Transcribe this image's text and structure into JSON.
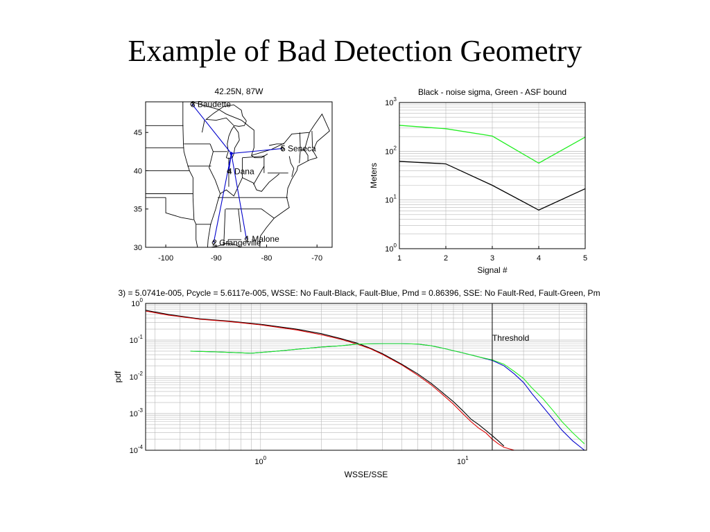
{
  "slide": {
    "title": "Example of Bad Detection Geometry"
  },
  "chart_data": [
    {
      "type": "map",
      "title": "42.25N, 87W",
      "xticks": [
        "-100",
        "-90",
        "-80",
        "-70"
      ],
      "yticks": [
        "30",
        "35",
        "40",
        "45"
      ],
      "xlim": [
        -104,
        -67
      ],
      "ylim": [
        30,
        49
      ],
      "source": {
        "lon": -87.0,
        "lat": 42.25
      },
      "stations": [
        {
          "label": "1 Malone",
          "lon": -84.0,
          "lat": 31.1
        },
        {
          "label": "2 Grangeville",
          "lon": -90.5,
          "lat": 30.6
        },
        {
          "label": "3 Baudette",
          "lon": -94.8,
          "lat": 48.7
        },
        {
          "label": "4 Dana",
          "lon": -87.5,
          "lat": 39.9
        },
        {
          "label": "5 Seneca",
          "lon": -76.9,
          "lat": 42.9
        }
      ],
      "colors": {
        "boundary": "#000000",
        "rays": "#0000cc"
      }
    },
    {
      "type": "line",
      "title": "Black - noise sigma, Green - ASF bound",
      "xlabel": "Signal #",
      "ylabel": "Meters",
      "yscale": "log",
      "xlim": [
        1,
        5
      ],
      "ylim": [
        1,
        1000
      ],
      "xticks": [
        "1",
        "2",
        "3",
        "4",
        "5"
      ],
      "yticks": [
        {
          "base": "10",
          "exp": "0"
        },
        {
          "base": "10",
          "exp": "1"
        },
        {
          "base": "10",
          "exp": "2"
        },
        {
          "base": "10",
          "exp": "3"
        }
      ],
      "grid": true,
      "x": [
        1,
        2,
        3,
        4,
        5
      ],
      "series": [
        {
          "color": "#000000",
          "values": [
            62,
            55,
            20,
            6.2,
            17
          ]
        },
        {
          "color": "#22ee22",
          "values": [
            340,
            290,
            205,
            57,
            195
          ]
        }
      ]
    },
    {
      "type": "line",
      "title": "3) = 5.0741e-005, Pcycle = 5.6117e-005, WSSE: No Fault-Black, Fault-Blue, Pmd = 0.86396, SSE: No Fault-Red, Fault-Green, Pm",
      "xlabel": "WSSE/SSE",
      "ylabel": "pdf",
      "xscale": "log",
      "yscale": "log",
      "xlim": [
        0.27,
        41
      ],
      "ylim": [
        0.0001,
        1
      ],
      "xticks": [
        {
          "base": "10",
          "exp": "0",
          "value": 1
        },
        {
          "base": "10",
          "exp": "1",
          "value": 10
        }
      ],
      "yticks": [
        {
          "base": "10",
          "exp": "-4"
        },
        {
          "base": "10",
          "exp": "-3"
        },
        {
          "base": "10",
          "exp": "-2"
        },
        {
          "base": "10",
          "exp": "-1"
        },
        {
          "base": "10",
          "exp": "0"
        }
      ],
      "grid": true,
      "threshold": {
        "label": "Threshold",
        "x": 14.0
      },
      "series": [
        {
          "color": "#000000",
          "x": [
            0.27,
            0.35,
            0.5,
            0.7,
            1.0,
            1.5,
            2.0,
            2.5,
            3.0,
            3.5,
            4.0,
            5.0,
            6.0,
            7.0,
            8.0,
            9.0,
            10.0,
            11.0,
            12.0,
            13.0,
            14.0,
            15.0,
            16.0
          ],
          "values": [
            0.65,
            0.5,
            0.38,
            0.33,
            0.27,
            0.2,
            0.15,
            0.11,
            0.083,
            0.06,
            0.043,
            0.022,
            0.012,
            0.0066,
            0.0036,
            0.0021,
            0.0012,
            0.0007,
            0.0005,
            0.00035,
            0.00025,
            0.00018,
            0.00013
          ]
        },
        {
          "color": "#dd0000",
          "x": [
            0.27,
            0.35,
            0.5,
            0.7,
            1.0,
            1.5,
            2.0,
            2.5,
            3.0,
            3.5,
            4.0,
            5.0,
            6.0,
            7.0,
            8.0,
            9.0,
            10.0,
            11.0,
            12.0,
            13.0,
            14.0,
            15.0,
            16.0,
            18.0
          ],
          "values": [
            0.62,
            0.48,
            0.37,
            0.32,
            0.26,
            0.19,
            0.14,
            0.105,
            0.078,
            0.058,
            0.041,
            0.021,
            0.011,
            0.006,
            0.0032,
            0.0018,
            0.001,
            0.0006,
            0.0004,
            0.0003,
            0.0002,
            0.00015,
            0.00012,
            0.0001
          ]
        },
        {
          "color": "#0000cc",
          "x": [
            0.45,
            0.6,
            0.9,
            1.2,
            1.6,
            2.0,
            2.5,
            3.0,
            4.0,
            5.0,
            6.0,
            7.0,
            8.0,
            10.0,
            12.0,
            14.0,
            16.0,
            18.0,
            20.0,
            22.0,
            25.0,
            28.0,
            31.0,
            35.0,
            40.0
          ],
          "values": [
            0.05,
            0.048,
            0.044,
            0.05,
            0.058,
            0.065,
            0.07,
            0.078,
            0.08,
            0.08,
            0.078,
            0.07,
            0.06,
            0.045,
            0.035,
            0.028,
            0.02,
            0.012,
            0.007,
            0.0035,
            0.0015,
            0.0007,
            0.00035,
            0.00018,
            0.0001
          ]
        },
        {
          "color": "#22ee22",
          "x": [
            0.45,
            0.6,
            0.9,
            1.2,
            1.6,
            2.0,
            2.5,
            3.0,
            4.0,
            5.0,
            6.0,
            7.0,
            8.0,
            10.0,
            12.0,
            14.0,
            16.0,
            18.0,
            20.0,
            22.0,
            25.0,
            28.0,
            31.0,
            35.0,
            40.0
          ],
          "values": [
            0.05,
            0.048,
            0.044,
            0.05,
            0.058,
            0.065,
            0.07,
            0.078,
            0.08,
            0.08,
            0.078,
            0.07,
            0.06,
            0.045,
            0.035,
            0.029,
            0.022,
            0.014,
            0.009,
            0.005,
            0.0025,
            0.0012,
            0.0006,
            0.0003,
            0.00015
          ]
        }
      ]
    }
  ]
}
